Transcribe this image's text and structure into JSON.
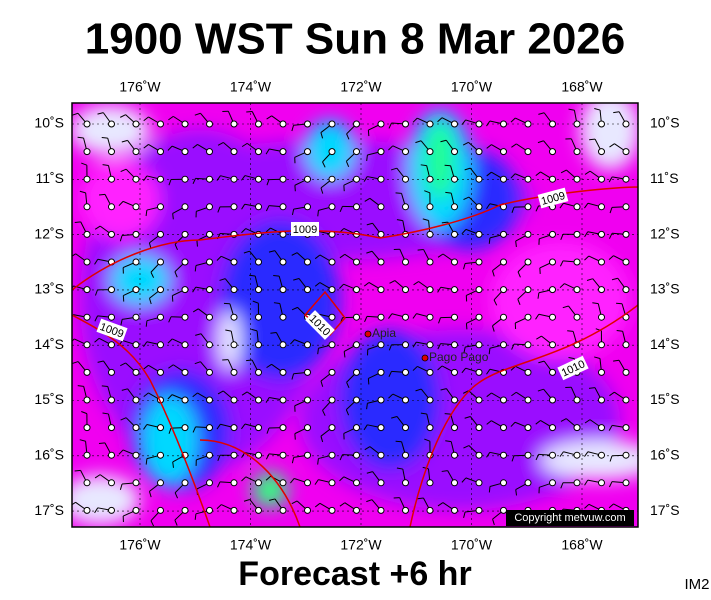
{
  "header": {
    "title": "1900 WST Sun 8 Mar 2026"
  },
  "map": {
    "longitudes": [
      "176˚W",
      "174˚W",
      "172˚W",
      "170˚W",
      "168˚W"
    ],
    "latitudes": [
      "10˚S",
      "11˚S",
      "12˚S",
      "13˚S",
      "14˚S",
      "15˚S",
      "16˚S",
      "17˚S"
    ],
    "isobar_labels": [
      "1009",
      "1009",
      "1009",
      "1010",
      "1010"
    ],
    "places": [
      "Apia",
      "Pago Pago"
    ],
    "copyright": "Copyright metvuw.com"
  },
  "footer": {
    "caption": "Forecast +6 hr",
    "code": "IM2"
  }
}
